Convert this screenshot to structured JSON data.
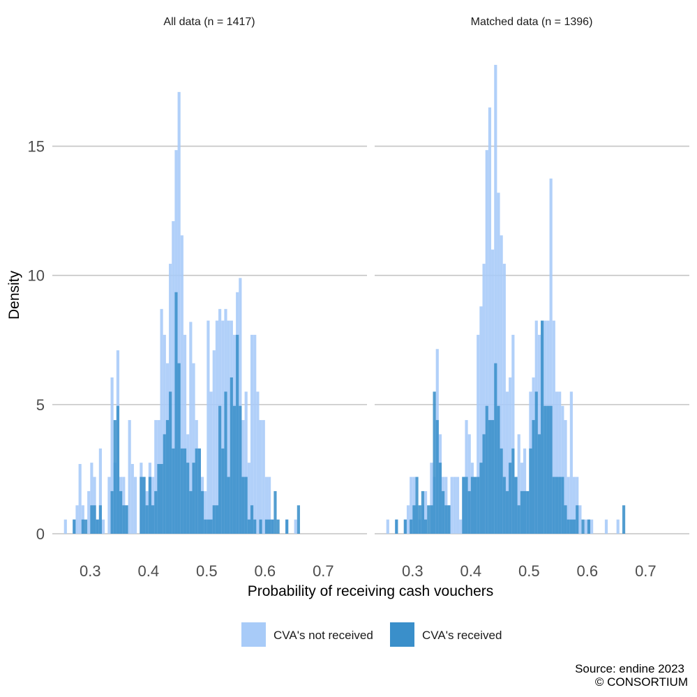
{
  "chart_data": {
    "type": "histogram",
    "xlabel": "Probability of receiving cash vouchers",
    "ylabel": "Density",
    "xlim": [
      0.235,
      0.775
    ],
    "ylim": [
      0,
      18.5
    ],
    "x_ticks": [
      "0.3",
      "0.4",
      "0.5",
      "0.6",
      "0.7"
    ],
    "y_ticks": [
      "0",
      "5",
      "10",
      "15"
    ],
    "grid": "horizontal major gridlines",
    "legend_position": "bottom",
    "bin_width": 0.005,
    "bin_start": 0.25,
    "colors": {
      "not_received": "#a8cbf8",
      "received": "#3a8fca"
    },
    "series_names": [
      "CVA's not received",
      "CVA's received"
    ],
    "panels": [
      {
        "title": "All data (n = 1417)",
        "not_received": [
          0,
          0.55,
          0,
          0,
          0.55,
          1.1,
          2.7,
          1.1,
          0,
          1.65,
          2.75,
          2.2,
          0.55,
          3.3,
          0.55,
          0,
          2.2,
          6.05,
          2.75,
          7.1,
          2.2,
          2.2,
          1.1,
          4.4,
          2.7,
          2.2,
          0,
          2.75,
          2.2,
          1.65,
          2.75,
          2.2,
          4.4,
          4.4,
          8.7,
          7.7,
          6.6,
          10.45,
          12.1,
          14.85,
          17.1,
          11.55,
          7.7,
          3.85,
          8.2,
          6.6,
          4.4,
          3.3,
          2.2,
          1.65,
          8.25,
          5.5,
          7.1,
          8.25,
          8.7,
          8.25,
          8.7,
          8.25,
          8.25,
          7.7,
          9.35,
          9.9,
          4.4,
          5.5,
          2.75,
          7.7,
          7.7,
          5.5,
          4.4,
          4.4,
          2.2,
          2.2,
          0.55,
          0,
          0,
          0,
          0,
          0.55,
          0,
          0,
          0.55,
          0,
          0
        ],
        "received": [
          0,
          0,
          0,
          0,
          0.55,
          0,
          0,
          0.55,
          0.55,
          0,
          1.1,
          1.1,
          0.55,
          1.1,
          0,
          0,
          0,
          1.65,
          4.4,
          4.95,
          1.65,
          1.1,
          1.1,
          0,
          0,
          0,
          0,
          2.2,
          2.2,
          1.1,
          2.2,
          1.1,
          1.65,
          2.7,
          2.7,
          3.85,
          4.4,
          5.5,
          3.3,
          9.35,
          6.6,
          3.3,
          3.3,
          2.75,
          1.65,
          2.75,
          3.3,
          3.3,
          1.65,
          0.55,
          0.55,
          0.55,
          1.1,
          1.1,
          4.95,
          3.3,
          5.5,
          2.2,
          6.05,
          4.95,
          7.7,
          4.95,
          2.2,
          2.2,
          0.55,
          1.1,
          0.55,
          0,
          0.55,
          0,
          0.55,
          0.55,
          0.55,
          1.65,
          0.55,
          0,
          0,
          0.55,
          0,
          0,
          0,
          1.1,
          0
        ]
      },
      {
        "title": "Matched data (n = 1396)",
        "not_received": [
          0,
          0.55,
          0,
          0,
          0.55,
          0,
          0,
          0.55,
          1.1,
          2.2,
          2.2,
          1.1,
          0.55,
          1.1,
          1.65,
          0,
          2.75,
          2.2,
          7.15,
          3.85,
          2.2,
          2.2,
          1.1,
          2.2,
          2.2,
          2.2,
          0.55,
          2.2,
          4.4,
          3.85,
          2.75,
          2.2,
          7.7,
          8.8,
          10.45,
          14.85,
          16.5,
          11.0,
          18.15,
          13.2,
          11.55,
          10.45,
          5.5,
          6.05,
          7.7,
          2.2,
          3.85,
          2.75,
          3.3,
          1.65,
          5.5,
          6.05,
          8.25,
          7.7,
          8.25,
          8.25,
          8.25,
          13.75,
          8.25,
          5.5,
          5.5,
          4.95,
          4.4,
          2.2,
          5.5,
          2.2,
          2.2,
          1.1,
          0,
          0.55,
          0.55,
          0.55,
          0,
          0,
          0,
          0,
          0.55,
          0,
          0,
          0,
          0.55,
          0,
          0
        ],
        "received": [
          0,
          0,
          0,
          0,
          0.55,
          0,
          0,
          0.55,
          0,
          0.55,
          1.1,
          2.2,
          1.1,
          1.65,
          0.55,
          1.1,
          1.1,
          5.5,
          4.4,
          2.75,
          1.65,
          1.1,
          1.1,
          0,
          0,
          0,
          0,
          2.2,
          2.2,
          1.65,
          2.2,
          2.2,
          2.2,
          2.75,
          3.85,
          4.95,
          4.4,
          4.4,
          6.6,
          4.95,
          3.3,
          2.2,
          1.65,
          2.75,
          3.3,
          2.2,
          1.1,
          1.65,
          1.65,
          1.65,
          3.3,
          4.4,
          5.5,
          3.85,
          8.25,
          4.95,
          4.95,
          4.95,
          2.2,
          2.2,
          2.2,
          2.2,
          1.1,
          0.55,
          0.55,
          0.55,
          1.1,
          0,
          0.55,
          0,
          0.55,
          0,
          0,
          0,
          0,
          0,
          0,
          0,
          0,
          0,
          0,
          0,
          1.1
        ]
      }
    ]
  },
  "legend": {
    "not_received_label": "CVA's not received",
    "received_label": "CVA's received"
  },
  "caption": {
    "line1": "Source: endine 2023",
    "line2": "© CONSORTIUM"
  }
}
